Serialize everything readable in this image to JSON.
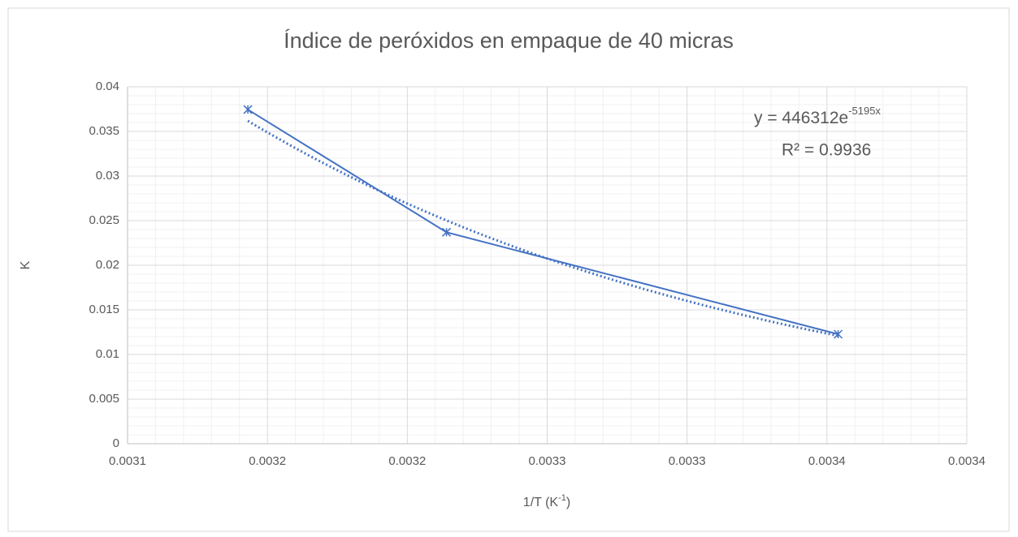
{
  "chart_data": {
    "type": "line",
    "title": "Índice de peróxidos en empaque de 40 micras",
    "x_label": [
      "1/T (K",
      "-1",
      ")"
    ],
    "y_label": "K",
    "x": [
      0.003143,
      0.003214,
      0.003354
    ],
    "series": [
      {
        "name": "K",
        "color": "#4472c4",
        "values": [
          0.03745,
          0.0237,
          0.01227
        ]
      }
    ],
    "xlim": [
      0.0031,
      0.0034
    ],
    "xticks": [
      0.0031,
      {
        "value": 0.00315,
        "label": "0.0032"
      },
      0.0032,
      {
        "value": 0.00325,
        "label": "0.0033"
      },
      0.0033,
      {
        "value": 0.00335,
        "label": "0.0034"
      },
      0.0034
    ],
    "ylim": [
      0,
      0.04
    ],
    "yticks": [
      0,
      0.005,
      0.01,
      0.015,
      0.02,
      0.025,
      0.03,
      0.035,
      0.04
    ],
    "grid": true,
    "minor_divisions": 5,
    "trendline": {
      "a": 446312,
      "b": -5195,
      "equation": [
        "y = 446312e",
        "-5195x"
      ],
      "r2": "R² = 0.9936"
    }
  }
}
